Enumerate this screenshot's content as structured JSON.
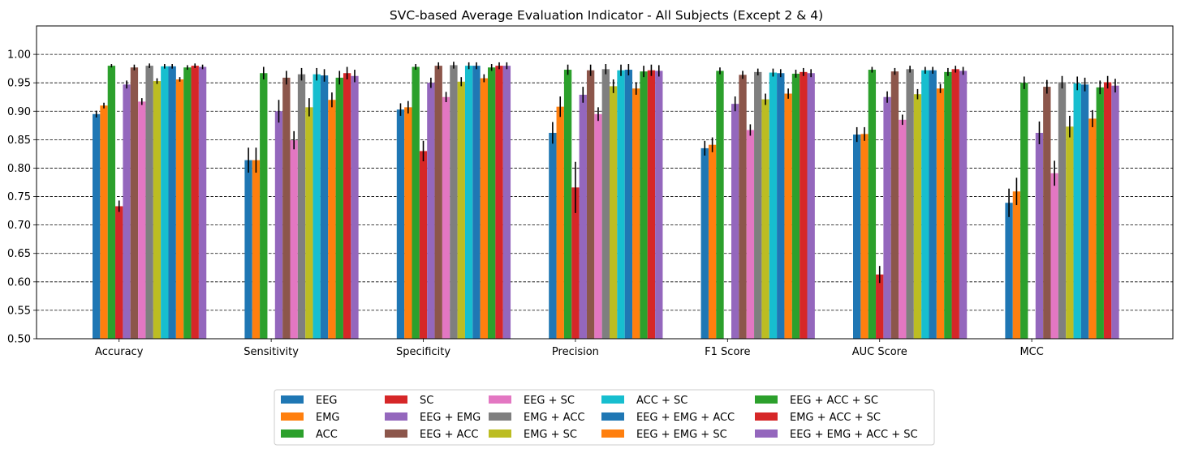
{
  "chart_data": {
    "type": "bar",
    "title": "SVC-based Average Evaluation Indicator - All Subjects (Except 2 & 4)",
    "xlabel": "",
    "ylabel": "",
    "ylim": [
      0.5,
      1.05
    ],
    "yticks": [
      "0.50",
      "0.55",
      "0.60",
      "0.65",
      "0.70",
      "0.75",
      "0.80",
      "0.85",
      "0.90",
      "0.95",
      "1.00"
    ],
    "grid": "horizontal dashed",
    "legend_position": "bottom-center",
    "categories": [
      "Accuracy",
      "Sensitivity",
      "Specificity",
      "Precision",
      "F1 Score",
      "AUC Score",
      "MCC"
    ],
    "series": [
      {
        "name": "EEG",
        "color": "#1f77b4",
        "values": [
          0.895,
          0.814,
          0.903,
          0.862,
          0.835,
          0.859,
          0.739
        ],
        "errors": [
          0.006,
          0.022,
          0.011,
          0.019,
          0.013,
          0.013,
          0.025
        ]
      },
      {
        "name": "EMG",
        "color": "#ff7f0e",
        "values": [
          0.91,
          0.814,
          0.907,
          0.908,
          0.841,
          0.86,
          0.759
        ],
        "errors": [
          0.005,
          0.022,
          0.011,
          0.018,
          0.013,
          0.012,
          0.024
        ]
      },
      {
        "name": "ACC",
        "color": "#2ca02c",
        "values": [
          0.98,
          0.967,
          0.978,
          0.973,
          0.971,
          0.973,
          0.95
        ],
        "errors": [
          0.003,
          0.011,
          0.005,
          0.009,
          0.006,
          0.005,
          0.011
        ]
      },
      {
        "name": "SC",
        "color": "#d62728",
        "values": [
          0.733,
          0.496,
          0.83,
          0.766,
          0.496,
          0.613,
          0.496
        ],
        "errors": [
          0.01,
          0.003,
          0.018,
          0.045,
          0.003,
          0.015,
          0.003
        ]
      },
      {
        "name": "EEG + EMG",
        "color": "#9467bd",
        "values": [
          0.947,
          0.9,
          0.95,
          0.929,
          0.913,
          0.925,
          0.862
        ],
        "errors": [
          0.007,
          0.02,
          0.009,
          0.014,
          0.013,
          0.01,
          0.02
        ]
      },
      {
        "name": "EEG + ACC",
        "color": "#8c564b",
        "values": [
          0.977,
          0.959,
          0.98,
          0.972,
          0.964,
          0.97,
          0.943
        ],
        "errors": [
          0.005,
          0.012,
          0.006,
          0.01,
          0.007,
          0.006,
          0.012
        ]
      },
      {
        "name": "EEG + SC",
        "color": "#e377c2",
        "values": [
          0.917,
          0.849,
          0.925,
          0.895,
          0.867,
          0.885,
          0.791
        ],
        "errors": [
          0.006,
          0.016,
          0.009,
          0.012,
          0.01,
          0.009,
          0.022
        ]
      },
      {
        "name": "EMG + ACC",
        "color": "#7f7f7f",
        "values": [
          0.98,
          0.965,
          0.981,
          0.974,
          0.969,
          0.974,
          0.951
        ],
        "errors": [
          0.004,
          0.011,
          0.006,
          0.009,
          0.006,
          0.006,
          0.011
        ]
      },
      {
        "name": "EMG + SC",
        "color": "#bcbd22",
        "values": [
          0.953,
          0.907,
          0.952,
          0.944,
          0.921,
          0.93,
          0.873
        ],
        "errors": [
          0.005,
          0.016,
          0.008,
          0.012,
          0.01,
          0.009,
          0.019
        ]
      },
      {
        "name": "ACC + SC",
        "color": "#17becf",
        "values": [
          0.979,
          0.965,
          0.98,
          0.972,
          0.968,
          0.972,
          0.949
        ],
        "errors": [
          0.004,
          0.011,
          0.006,
          0.01,
          0.007,
          0.006,
          0.012
        ]
      },
      {
        "name": "EEG + EMG + ACC",
        "color": "#1f77b4",
        "values": [
          0.979,
          0.963,
          0.98,
          0.973,
          0.967,
          0.972,
          0.947
        ],
        "errors": [
          0.004,
          0.011,
          0.006,
          0.01,
          0.007,
          0.006,
          0.012
        ]
      },
      {
        "name": "EEG + EMG + SC",
        "color": "#ff7f0e",
        "values": [
          0.956,
          0.92,
          0.958,
          0.94,
          0.931,
          0.94,
          0.887
        ],
        "errors": [
          0.004,
          0.013,
          0.007,
          0.011,
          0.009,
          0.008,
          0.015
        ]
      },
      {
        "name": "EEG + ACC + SC",
        "color": "#2ca02c",
        "values": [
          0.977,
          0.959,
          0.977,
          0.97,
          0.966,
          0.969,
          0.942
        ],
        "errors": [
          0.004,
          0.012,
          0.006,
          0.01,
          0.007,
          0.007,
          0.012
        ]
      },
      {
        "name": "EMG + ACC + SC",
        "color": "#d62728",
        "values": [
          0.98,
          0.967,
          0.98,
          0.972,
          0.969,
          0.974,
          0.951
        ],
        "errors": [
          0.004,
          0.011,
          0.006,
          0.01,
          0.007,
          0.006,
          0.011
        ]
      },
      {
        "name": "EEG + EMG + ACC + SC",
        "color": "#9467bd",
        "values": [
          0.978,
          0.962,
          0.98,
          0.971,
          0.967,
          0.971,
          0.945
        ],
        "errors": [
          0.004,
          0.011,
          0.006,
          0.01,
          0.007,
          0.007,
          0.012
        ]
      }
    ]
  }
}
